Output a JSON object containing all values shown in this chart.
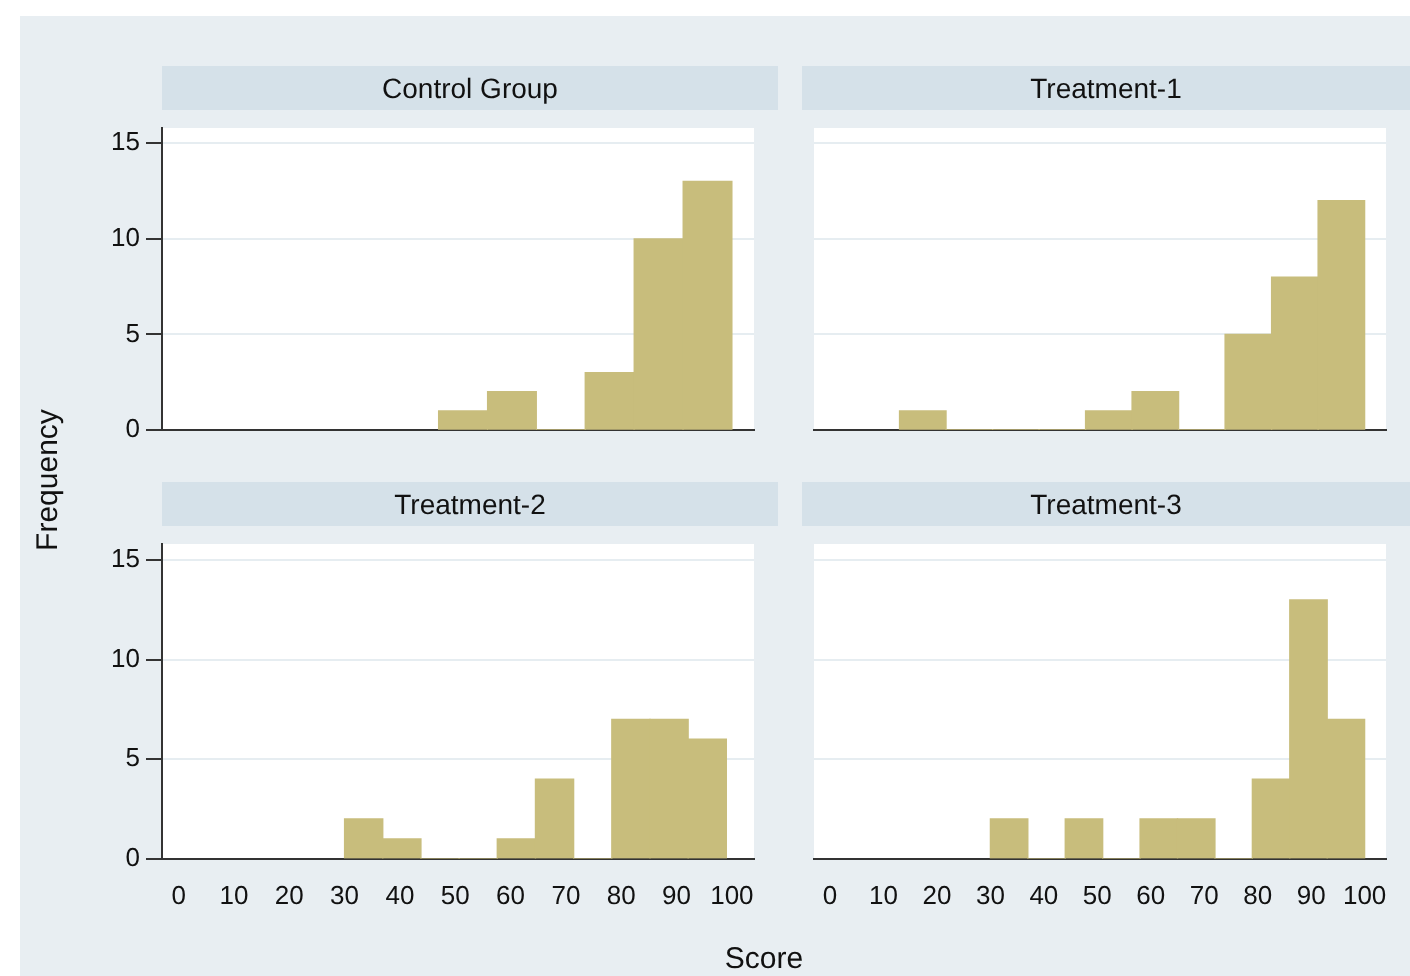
{
  "chart_data": [
    {
      "type": "histogram",
      "title": "Control Group",
      "ylabel": "Frequency",
      "bins": [
        47,
        55.8,
        64.7,
        73.5,
        82.3,
        91.2,
        100
      ],
      "values": [
        1,
        2,
        0,
        3,
        10,
        13
      ],
      "color": "#c8bd7c",
      "xlim": [
        -3,
        104
      ],
      "xticks": [
        0,
        10,
        20,
        30,
        40,
        50,
        60,
        70,
        80,
        90,
        100
      ],
      "ylim": [
        0,
        15.8
      ],
      "yticks": [
        0,
        5,
        10,
        15
      ],
      "grid": "y",
      "tick_labels": "y"
    },
    {
      "type": "histogram",
      "title": "Treatment-1",
      "bins": [
        13,
        21.7,
        30.4,
        39.1,
        47.8,
        56.5,
        65.2,
        73.9,
        82.6,
        91.3,
        100
      ],
      "values": [
        1,
        0,
        0,
        0,
        1,
        2,
        0,
        5,
        8,
        12
      ],
      "color": "#c8bd7c",
      "xlim": [
        -3,
        104
      ],
      "xticks": [
        0,
        10,
        20,
        30,
        40,
        50,
        60,
        70,
        80,
        90,
        100
      ],
      "ylim": [
        0,
        15.8
      ],
      "yticks": [
        0,
        5,
        10,
        15
      ],
      "grid": "y",
      "tick_labels": false
    },
    {
      "type": "histogram",
      "title": "Treatment-2",
      "xlabel": "Score",
      "bins": [
        30,
        36.9,
        43.8,
        50.7,
        57.6,
        64.5,
        71.4,
        78.3,
        85.2,
        92.1,
        99
      ],
      "values": [
        2,
        1,
        0,
        0,
        1,
        4,
        0,
        7,
        7,
        6
      ],
      "color": "#c8bd7c",
      "xlim": [
        -3,
        104
      ],
      "xticks": [
        0,
        10,
        20,
        30,
        40,
        50,
        60,
        70,
        80,
        90,
        100
      ],
      "ylim": [
        0,
        15.8
      ],
      "yticks": [
        0,
        5,
        10,
        15
      ],
      "grid": "y"
    },
    {
      "type": "histogram",
      "title": "Treatment-3",
      "bins": [
        30,
        37,
        44,
        51,
        58,
        65,
        72,
        79,
        86,
        93,
        100
      ],
      "values": [
        2,
        0,
        2,
        0,
        2,
        2,
        0,
        4,
        13,
        7
      ],
      "color": "#c8bd7c",
      "xlim": [
        -3,
        104
      ],
      "xticks": [
        0,
        10,
        20,
        30,
        40,
        50,
        60,
        70,
        80,
        90,
        100
      ],
      "ylim": [
        0,
        15.8
      ],
      "yticks": [
        0,
        5,
        10,
        15
      ],
      "grid": "y",
      "tick_labels": "x"
    }
  ]
}
